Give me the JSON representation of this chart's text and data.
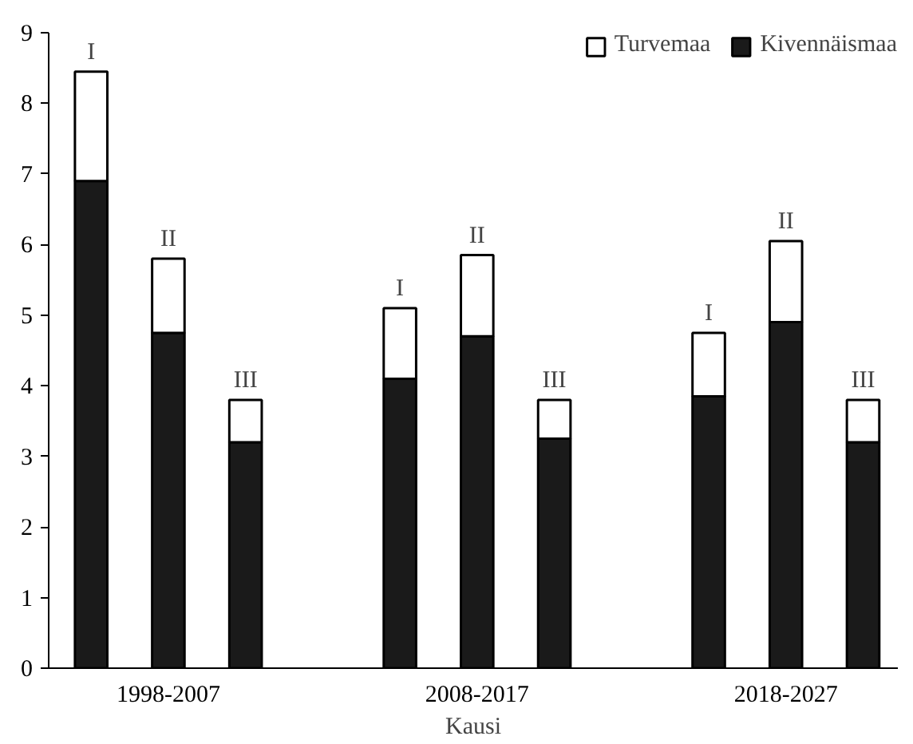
{
  "chart_data": {
    "type": "bar",
    "stacked": true,
    "xlabel": "Kausi",
    "categories": [
      null,
      "1998-2007",
      null,
      null,
      null,
      "2008-2017",
      null,
      null,
      null,
      "2018-2027",
      null
    ],
    "series": [
      {
        "name": "Kivennäismaa",
        "color": "#1a1a1a",
        "values": [
          6.9,
          4.75,
          3.2,
          null,
          4.1,
          4.7,
          3.25,
          null,
          3.85,
          4.9,
          3.2
        ]
      },
      {
        "name": "Turvemaa",
        "color": "#ffffff",
        "values": [
          1.55,
          1.05,
          0.6,
          null,
          1.0,
          1.15,
          0.55,
          null,
          0.9,
          1.15,
          0.6
        ]
      }
    ],
    "ylim": [
      0,
      9
    ],
    "yticks": [
      0,
      1,
      2,
      3,
      4,
      5,
      6,
      7,
      8,
      9
    ],
    "grid": false,
    "legend": "top right",
    "annotations": [
      {
        "text": "I",
        "y": 8.45
      },
      {
        "text": "II",
        "y": 5.8
      },
      {
        "text": "III",
        "y": 3.8
      },
      {
        "text": "I",
        "y": 5.1
      },
      {
        "text": "II",
        "y": 5.85
      },
      {
        "text": "III",
        "y": 3.8
      },
      {
        "text": "I",
        "y": 4.75
      },
      {
        "text": "II",
        "y": 6.05
      },
      {
        "text": "III",
        "y": 3.8
      }
    ]
  }
}
